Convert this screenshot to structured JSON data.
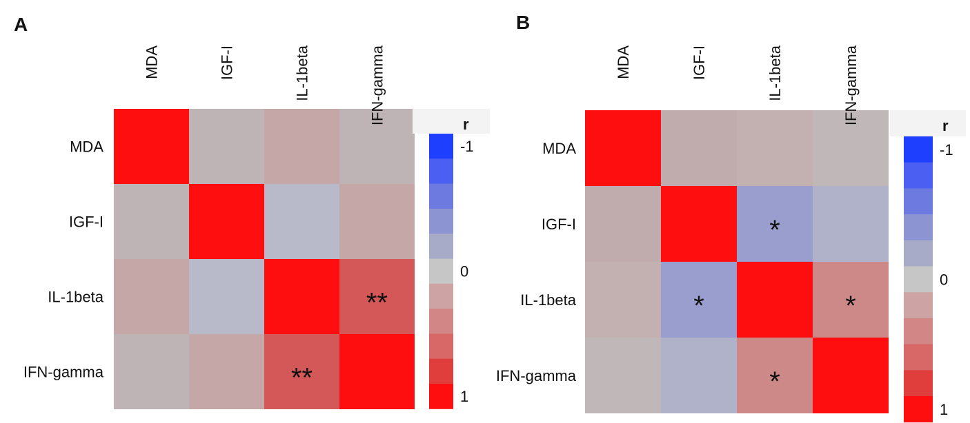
{
  "chart_data": [
    {
      "panel_label": "A",
      "type": "heatmap",
      "row_labels": [
        "MDA",
        "IGF-I",
        "IL-1beta",
        "IFN-gamma"
      ],
      "col_labels": [
        "MDA",
        "IGF-I",
        "IL-1beta",
        "IFN-gamma"
      ],
      "colors": [
        [
          "#fe0e0e",
          "#bfb4b5",
          "#c5a7a7",
          "#bfb4b5"
        ],
        [
          "#bfb4b5",
          "#fe0e0e",
          "#b8b9c9",
          "#c5a7a7"
        ],
        [
          "#c5a7a7",
          "#b8b9c9",
          "#fe0e0e",
          "#d45858"
        ],
        [
          "#bfb4b5",
          "#c5a7a7",
          "#d45858",
          "#fe0e0e"
        ]
      ],
      "annotations": [
        [
          "",
          "",
          "",
          ""
        ],
        [
          "",
          "",
          "",
          ""
        ],
        [
          "",
          "",
          "",
          "**"
        ],
        [
          "",
          "",
          "**",
          ""
        ]
      ],
      "legend": {
        "title": "r",
        "ticks": [
          "-1",
          "0",
          "1"
        ],
        "colors": [
          "#1f3fff",
          "#4b5ff2",
          "#6d7ae0",
          "#8c95d2",
          "#a7abc8",
          "#c6c6c6",
          "#cda3a3",
          "#d38686",
          "#d86868",
          "#e03d3d",
          "#fe0e0e"
        ]
      }
    },
    {
      "panel_label": "B",
      "type": "heatmap",
      "row_labels": [
        "MDA",
        "IGF-I",
        "IL-1beta",
        "IFN-gamma"
      ],
      "col_labels": [
        "MDA",
        "IGF-I",
        "IL-1beta",
        "IFN-gamma"
      ],
      "colors": [
        [
          "#fe0e0e",
          "#c0acac",
          "#c3b0b0",
          "#bfb7b8"
        ],
        [
          "#c0acac",
          "#fe0e0e",
          "#9a9ece",
          "#b0b2ca"
        ],
        [
          "#c3b0b0",
          "#9a9ece",
          "#fe0e0e",
          "#cd8888"
        ],
        [
          "#bfb7b8",
          "#b0b2ca",
          "#cd8888",
          "#fe0e0e"
        ]
      ],
      "annotations": [
        [
          "",
          "",
          "",
          ""
        ],
        [
          "",
          "",
          "*",
          ""
        ],
        [
          "",
          "*",
          "",
          "*"
        ],
        [
          "",
          "",
          "*",
          ""
        ]
      ],
      "legend": {
        "title": "r",
        "ticks": [
          "-1",
          "0",
          "1"
        ],
        "colors": [
          "#1f3fff",
          "#4b5ff2",
          "#6d7ae0",
          "#8c95d2",
          "#a7abc8",
          "#c6c6c6",
          "#cda3a3",
          "#d38686",
          "#d86868",
          "#e03d3d",
          "#fe0e0e"
        ]
      }
    }
  ]
}
